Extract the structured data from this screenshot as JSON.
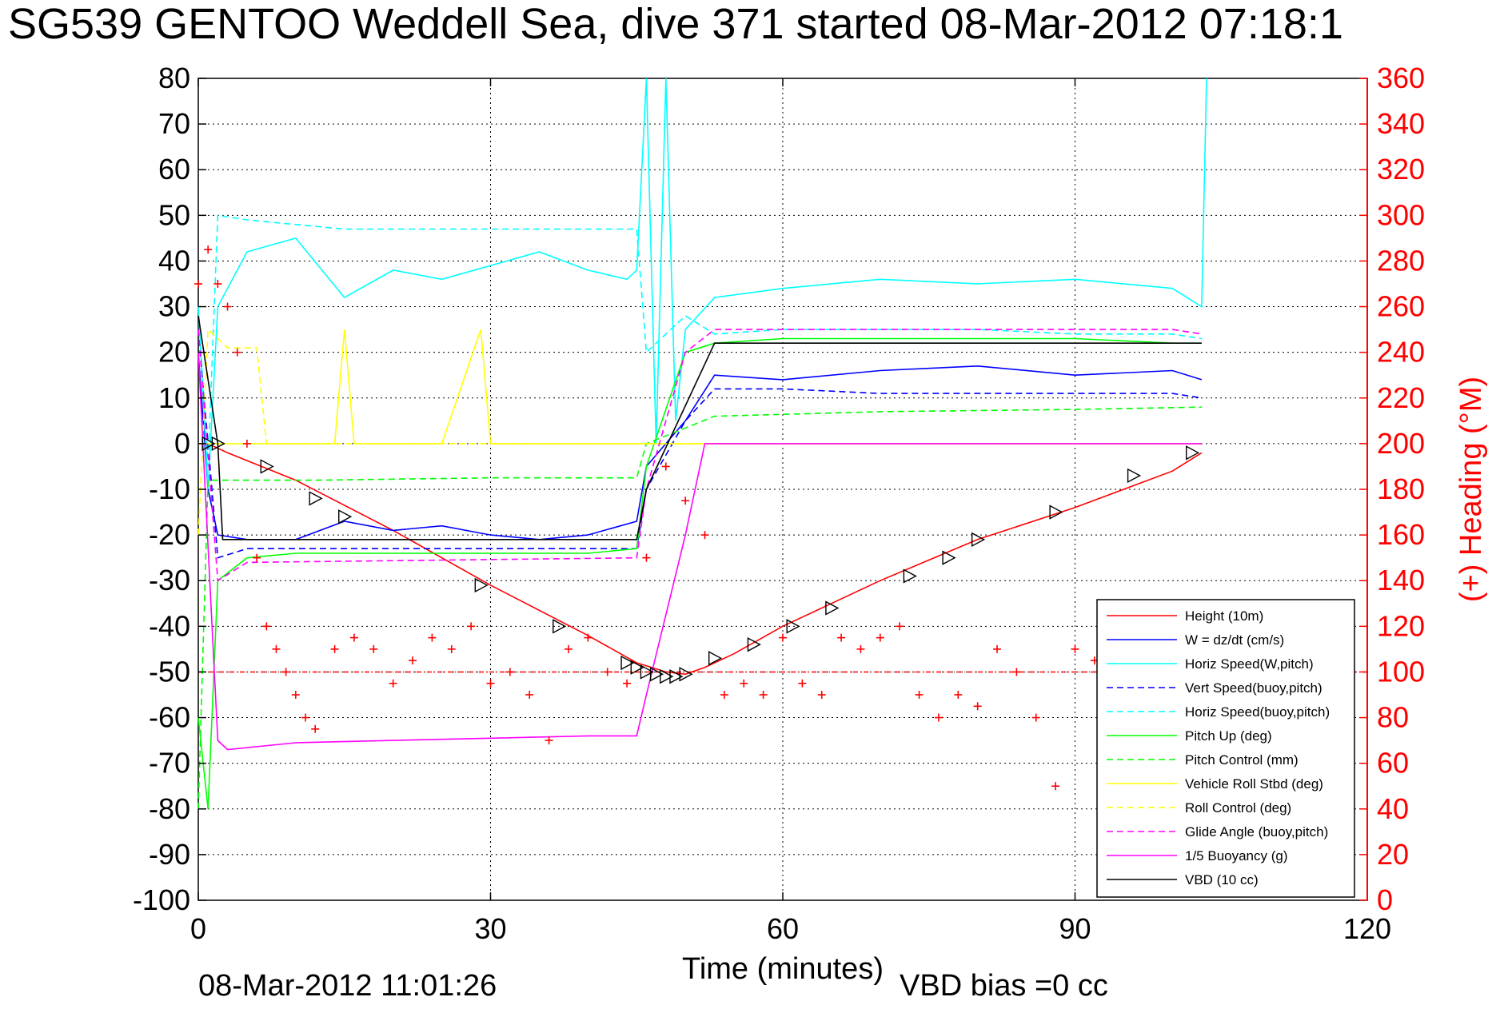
{
  "title": "SG539 GENTOO Weddell Sea, dive 371 started 08-Mar-2012 07:18:1",
  "footer": {
    "timestamp": "08-Mar-2012 11:01:26",
    "vbd_bias": "VBD bias =0 cc"
  },
  "colors": {
    "red": "#ff0000",
    "blue": "#0000ff",
    "cyan": "#00ffff",
    "green": "#00ff00",
    "yellow": "#ffff00",
    "magenta": "#ff00ff",
    "black": "#000000"
  },
  "chart_data": {
    "type": "line",
    "xlabel": "Time (minutes)",
    "ylabel_right": "(+) Heading (°M)",
    "xlim": [
      0,
      120
    ],
    "ylim": [
      -100,
      80
    ],
    "ylim_right": [
      0,
      360
    ],
    "xticks": [
      0,
      30,
      60,
      90,
      120
    ],
    "yticks": [
      80,
      70,
      60,
      50,
      40,
      30,
      20,
      10,
      0,
      -10,
      -20,
      -30,
      -40,
      -50,
      -60,
      -70,
      -80,
      -90,
      -100
    ],
    "yticks_right": [
      360,
      340,
      320,
      300,
      280,
      260,
      240,
      220,
      200,
      180,
      160,
      140,
      120,
      100,
      80,
      60,
      40,
      20,
      0
    ],
    "grid": true,
    "legend_position": "bottom-right",
    "series": [
      {
        "name": "Height (10m)",
        "color": "#ff0000",
        "dash": "solid",
        "x": [
          0,
          1,
          3,
          10,
          20,
          30,
          40,
          45,
          48,
          50,
          52,
          55,
          60,
          70,
          80,
          90,
          100,
          103
        ],
        "y": [
          0,
          0,
          -2,
          -8,
          -19,
          -31,
          -42,
          -48,
          -50,
          -50.5,
          -49,
          -46,
          -40,
          -30,
          -21,
          -14,
          -6,
          -2
        ]
      },
      {
        "name": "W = dz/dt (cm/s)",
        "color": "#0000ff",
        "dash": "solid",
        "x": [
          0,
          1,
          2,
          5,
          10,
          15,
          20,
          25,
          30,
          35,
          40,
          45,
          46,
          50,
          53,
          60,
          70,
          80,
          90,
          100,
          103
        ],
        "y": [
          20,
          -10,
          -20,
          -21,
          -21,
          -17,
          -19,
          -18,
          -20,
          -21,
          -20,
          -17,
          -5,
          5,
          15,
          14,
          16,
          17,
          15,
          16,
          14
        ]
      },
      {
        "name": "Horiz Speed(W,pitch)",
        "color": "#00ffff",
        "dash": "solid",
        "x": [
          0,
          1,
          2,
          5,
          10,
          15,
          20,
          25,
          30,
          35,
          40,
          44,
          45,
          46,
          47,
          48,
          49,
          50,
          53,
          60,
          70,
          80,
          90,
          100,
          103,
          103.5
        ],
        "y": [
          30,
          -10,
          30,
          42,
          45,
          32,
          38,
          36,
          39,
          42,
          38,
          36,
          38,
          80,
          0,
          80,
          5,
          25,
          32,
          34,
          36,
          35,
          36,
          34,
          30,
          80
        ]
      },
      {
        "name": "Vert Speed(buoy,pitch)",
        "color": "#0000ff",
        "dash": "dashed",
        "x": [
          0,
          2,
          5,
          45,
          46,
          50,
          53,
          60,
          70,
          80,
          90,
          100,
          103
        ],
        "y": [
          25,
          -25,
          -23,
          -23,
          -10,
          5,
          12,
          12,
          11,
          11,
          11,
          11,
          10
        ]
      },
      {
        "name": "Horiz Speed(buoy,pitch)",
        "color": "#00ffff",
        "dash": "dashed",
        "x": [
          0,
          1,
          2,
          5,
          10,
          15,
          20,
          30,
          40,
          45,
          46,
          50,
          53,
          60,
          70,
          80,
          90,
          100,
          103
        ],
        "y": [
          30,
          -5,
          50,
          49,
          48,
          47,
          47,
          47,
          47,
          47,
          20,
          28,
          24,
          25,
          25,
          25,
          24,
          24,
          23
        ]
      },
      {
        "name": "Pitch Up (deg)",
        "color": "#00ff00",
        "dash": "solid",
        "x": [
          0,
          1,
          2,
          5,
          10,
          20,
          30,
          40,
          45,
          46,
          50,
          53,
          60,
          70,
          80,
          90,
          100,
          103
        ],
        "y": [
          -60,
          -80,
          -30,
          -25,
          -24,
          -24,
          -24,
          -24,
          -23,
          -5,
          20,
          22,
          23,
          23,
          23,
          23,
          22,
          22
        ]
      },
      {
        "name": "Pitch Control (mm)",
        "color": "#00ff00",
        "dash": "dashed",
        "x": [
          0,
          1,
          2,
          12,
          30,
          45,
          46,
          53,
          70,
          90,
          103
        ],
        "y": [
          -80,
          -8,
          -8,
          -8,
          -7.5,
          -7.5,
          0,
          6,
          7,
          7.5,
          8
        ]
      },
      {
        "name": "Vehicle Roll Stbd (deg)",
        "color": "#ffff00",
        "dash": "solid",
        "x": [
          0,
          2,
          5,
          10,
          14,
          15,
          16,
          25,
          29,
          30,
          37,
          45,
          46,
          50,
          55,
          60,
          70,
          80,
          90,
          100,
          103
        ],
        "y": [
          0,
          0,
          0,
          0,
          0,
          25,
          0,
          0,
          25,
          0,
          0,
          0,
          0,
          0,
          0,
          0,
          0,
          0,
          0,
          0,
          0
        ]
      },
      {
        "name": "Roll Control (deg)",
        "color": "#ffff00",
        "dash": "dashed",
        "x": [
          0,
          1,
          3,
          6,
          7,
          45,
          46,
          100,
          103
        ],
        "y": [
          -20,
          25,
          21,
          21,
          0,
          0,
          0,
          0,
          0
        ]
      },
      {
        "name": "Glide Angle (buoy,pitch)",
        "color": "#ff00ff",
        "dash": "dashed",
        "x": [
          0,
          2,
          5,
          45,
          46,
          50,
          53,
          60,
          70,
          80,
          90,
          100,
          103
        ],
        "y": [
          25,
          -30,
          -26,
          -25,
          -10,
          20,
          25,
          25,
          25,
          25,
          25,
          25,
          24
        ]
      },
      {
        "name": "1/5 Buoyancy (g)",
        "color": "#ff00ff",
        "dash": "solid",
        "x": [
          0,
          2,
          3,
          10,
          20,
          30,
          40,
          45,
          46,
          50,
          52,
          53,
          103
        ],
        "y": [
          20,
          -65,
          -67,
          -65.5,
          -65,
          -64.5,
          -64,
          -64,
          -55,
          -20,
          0,
          0,
          0
        ]
      },
      {
        "name": "VBD (10 cc)",
        "color": "#000000",
        "dash": "solid",
        "x": [
          0,
          2,
          2.5,
          45,
          46,
          53,
          103
        ],
        "y": [
          28,
          0,
          -21,
          -21,
          -10,
          22,
          22
        ]
      }
    ],
    "heading_series": {
      "name": "(+) Heading (°M)",
      "color": "#ff0000",
      "marker": "+",
      "x": [
        0,
        1,
        2,
        3,
        4,
        5,
        6,
        7,
        8,
        9,
        10,
        11,
        12,
        14,
        16,
        18,
        20,
        22,
        24,
        26,
        28,
        30,
        32,
        34,
        36,
        38,
        40,
        42,
        44,
        46,
        48,
        50,
        52,
        54,
        56,
        58,
        60,
        62,
        64,
        66,
        68,
        70,
        72,
        74,
        76,
        78,
        80,
        82,
        84,
        86,
        88,
        90,
        92
      ],
      "y": [
        270,
        285,
        270,
        260,
        240,
        200,
        150,
        120,
        110,
        100,
        90,
        80,
        75,
        110,
        115,
        110,
        95,
        105,
        115,
        110,
        120,
        95,
        100,
        90,
        70,
        110,
        115,
        100,
        95,
        150,
        190,
        175,
        160,
        90,
        95,
        90,
        115,
        95,
        90,
        115,
        110,
        115,
        120,
        90,
        80,
        90,
        85,
        110,
        100,
        80,
        50,
        110,
        105
      ]
    },
    "heading_reference": 100,
    "markers": {
      "symbol": "triangle",
      "x": [
        1,
        2,
        7,
        12,
        15,
        29,
        37,
        44,
        45,
        46,
        47,
        48,
        49,
        50,
        53,
        57,
        61,
        65,
        73,
        77,
        80,
        88,
        96,
        102
      ],
      "y": [
        0,
        0,
        -5,
        -12,
        -16,
        -31,
        -40,
        -48,
        -49,
        -50,
        -50.5,
        -51,
        -51,
        -50.5,
        -47,
        -44,
        -40,
        -36,
        -29,
        -25,
        -21,
        -15,
        -7,
        -2
      ]
    }
  }
}
